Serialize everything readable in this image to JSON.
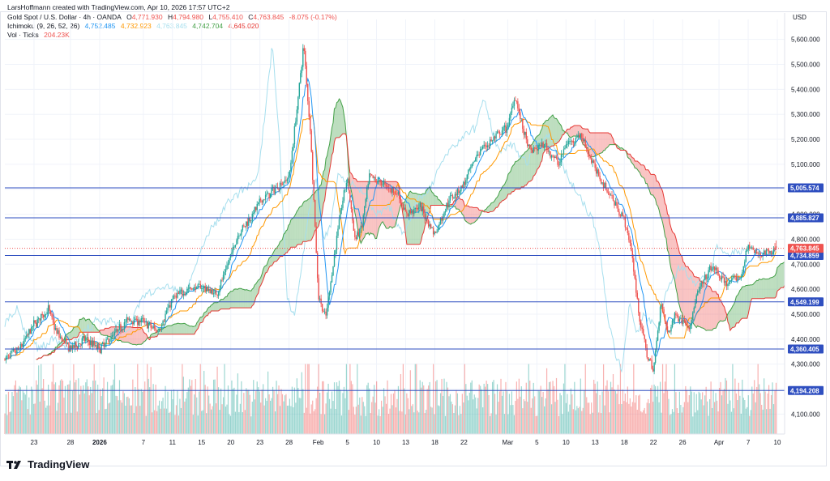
{
  "header": {
    "credit": "LarsHoffmann created with TradingView.com, Apr 10, 2026 17:57 UTC+2",
    "symbol": "Gold Spot / U.S. Dollar · 4h · OANDA",
    "open_label": "O",
    "open": "4,771.930",
    "high_label": "H",
    "high": "4,794.980",
    "low_label": "L",
    "low": "4,755.410",
    "close_label": "C",
    "close": "4,763.845",
    "change": "-8.075 (-0.17%)",
    "ichimoku_label": "Ichimoku (9, 26, 52, 26)",
    "ichimoku_values": [
      "4,752.485",
      "4,732.923",
      "4,763.845",
      "4,742.704",
      "4,645.020"
    ],
    "volume_label": "Vol · Ticks",
    "volume_value": "204.23K"
  },
  "brand": {
    "name": "TradingView"
  },
  "colors": {
    "up": "#26a69a",
    "down": "#ef5350",
    "conversion": "#2196f3",
    "base": "#ff9800",
    "lagging": "#a7dfee",
    "leadA": "#43a047",
    "leadB": "#e53935",
    "cloudUp": "rgba(67,160,71,0.35)",
    "cloudDown": "rgba(239,83,80,0.35)",
    "hline": "#2f4fc0",
    "grid": "#f0f3fa",
    "axisText": "#131722"
  },
  "chart_data": {
    "type": "candlestick",
    "title": "Gold Spot / U.S. Dollar · 4h · OANDA",
    "currency_label": "USD",
    "ylim": [
      4020,
      5680
    ],
    "y_ticks": [
      {
        "value": 4100,
        "label": "4,100.000"
      },
      {
        "value": 4200,
        "label": "4,200.000"
      },
      {
        "value": 4300,
        "label": "4,300.000"
      },
      {
        "value": 4400,
        "label": "4,400.000"
      },
      {
        "value": 4500,
        "label": "4,500.000"
      },
      {
        "value": 4600,
        "label": "4,600.000"
      },
      {
        "value": 4700,
        "label": "4,700.000"
      },
      {
        "value": 4800,
        "label": "4,800.000"
      },
      {
        "value": 4900,
        "label": "4,900.000"
      },
      {
        "value": 5000,
        "label": "5,000.000"
      },
      {
        "value": 5100,
        "label": "5,100.000"
      },
      {
        "value": 5200,
        "label": "5,200.000"
      },
      {
        "value": 5300,
        "label": "5,300.000"
      },
      {
        "value": 5400,
        "label": "5,400.000"
      },
      {
        "value": 5500,
        "label": "5,500.000"
      },
      {
        "value": 5600,
        "label": "5,600.000"
      }
    ],
    "x_ticks": [
      {
        "day": 0,
        "label": "23"
      },
      {
        "day": 5,
        "label": "28"
      },
      {
        "day": 9,
        "label": "2026",
        "bold": true
      },
      {
        "day": 15,
        "label": "7"
      },
      {
        "day": 19,
        "label": "11"
      },
      {
        "day": 23,
        "label": "15"
      },
      {
        "day": 27,
        "label": "20"
      },
      {
        "day": 31,
        "label": "23"
      },
      {
        "day": 35,
        "label": "28"
      },
      {
        "day": 39,
        "label": "Feb"
      },
      {
        "day": 43,
        "label": "5"
      },
      {
        "day": 47,
        "label": "10"
      },
      {
        "day": 51,
        "label": "13"
      },
      {
        "day": 55,
        "label": "18"
      },
      {
        "day": 59,
        "label": "22"
      },
      {
        "day": 65,
        "label": "Mar"
      },
      {
        "day": 69,
        "label": "5"
      },
      {
        "day": 73,
        "label": "10"
      },
      {
        "day": 77,
        "label": "13"
      },
      {
        "day": 81,
        "label": "18"
      },
      {
        "day": 85,
        "label": "22"
      },
      {
        "day": 89,
        "label": "26"
      },
      {
        "day": 94,
        "label": "Apr"
      },
      {
        "day": 98,
        "label": "7"
      },
      {
        "day": 102,
        "label": "10"
      }
    ],
    "day_range": [
      -4,
      103
    ],
    "price_path": [
      [
        -4,
        4320
      ],
      [
        -2,
        4360
      ],
      [
        0,
        4460
      ],
      [
        2,
        4520
      ],
      [
        3,
        4430
      ],
      [
        5,
        4360
      ],
      [
        7,
        4400
      ],
      [
        9,
        4360
      ],
      [
        11,
        4420
      ],
      [
        13,
        4480
      ],
      [
        15,
        4470
      ],
      [
        17,
        4430
      ],
      [
        19,
        4560
      ],
      [
        21,
        4600
      ],
      [
        23,
        4610
      ],
      [
        25,
        4580
      ],
      [
        26,
        4650
      ],
      [
        28,
        4820
      ],
      [
        30,
        4900
      ],
      [
        31,
        4950
      ],
      [
        33,
        5000
      ],
      [
        35,
        5050
      ],
      [
        36,
        5300
      ],
      [
        37,
        5580
      ],
      [
        38,
        5200
      ],
      [
        39,
        4580
      ],
      [
        40,
        4480
      ],
      [
        42,
        4900
      ],
      [
        43,
        5050
      ],
      [
        44,
        4800
      ],
      [
        45,
        4850
      ],
      [
        46,
        5050
      ],
      [
        48,
        5020
      ],
      [
        50,
        4980
      ],
      [
        51,
        4900
      ],
      [
        53,
        4930
      ],
      [
        55,
        4820
      ],
      [
        57,
        4960
      ],
      [
        59,
        5020
      ],
      [
        61,
        5150
      ],
      [
        63,
        5200
      ],
      [
        65,
        5250
      ],
      [
        66,
        5380
      ],
      [
        67,
        5250
      ],
      [
        68,
        5150
      ],
      [
        70,
        5180
      ],
      [
        72,
        5100
      ],
      [
        73,
        5180
      ],
      [
        75,
        5220
      ],
      [
        77,
        5080
      ],
      [
        79,
        4980
      ],
      [
        81,
        4880
      ],
      [
        82,
        4750
      ],
      [
        83,
        4500
      ],
      [
        84,
        4350
      ],
      [
        85,
        4270
      ],
      [
        86,
        4550
      ],
      [
        87,
        4420
      ],
      [
        88,
        4500
      ],
      [
        90,
        4450
      ],
      [
        91,
        4580
      ],
      [
        93,
        4690
      ],
      [
        95,
        4620
      ],
      [
        97,
        4650
      ],
      [
        98,
        4780
      ],
      [
        99,
        4740
      ],
      [
        101,
        4750
      ],
      [
        102,
        4764
      ]
    ],
    "ohlc_last": {
      "open": 4771.93,
      "high": 4794.98,
      "low": 4755.41,
      "close": 4763.845
    },
    "ichimoku": {
      "params": [
        9,
        26,
        52,
        26
      ],
      "conversion_last": 4752.485,
      "base_last": 4732.923,
      "lagging_last": 4763.845,
      "lead_a_last": 4742.704,
      "lead_b_last": 4645.02
    },
    "horizontal_levels": [
      {
        "value": 5005.574,
        "label": "5,005.574"
      },
      {
        "value": 4885.827,
        "label": "4,885.827"
      },
      {
        "value": 4734.859,
        "label": "4,734.859"
      },
      {
        "value": 4549.199,
        "label": "4,549.199"
      },
      {
        "value": 4360.405,
        "label": "4,360.405"
      },
      {
        "value": 4194.208,
        "label": "4,194.208"
      }
    ],
    "last_price": {
      "value": 4763.845,
      "label": "4,763.845"
    }
  }
}
